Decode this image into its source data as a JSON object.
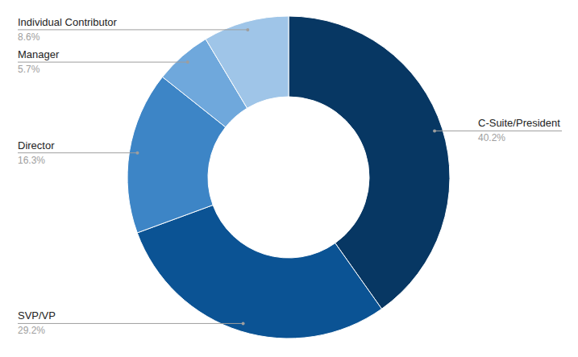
{
  "chart_data": {
    "type": "pie",
    "categories": [
      "C-Suite/President",
      "SVP/VP",
      "Director",
      "Manager",
      "Individual Contributor"
    ],
    "values": [
      40.2,
      29.2,
      16.3,
      5.7,
      8.6
    ],
    "value_labels": [
      "40.2%",
      "29.2%",
      "16.3%",
      "5.7%",
      "8.6%"
    ],
    "colors": [
      "#073763",
      "#0b5394",
      "#3d85c6",
      "#6fa8dc",
      "#9fc5e8"
    ],
    "data_labels": true
  }
}
